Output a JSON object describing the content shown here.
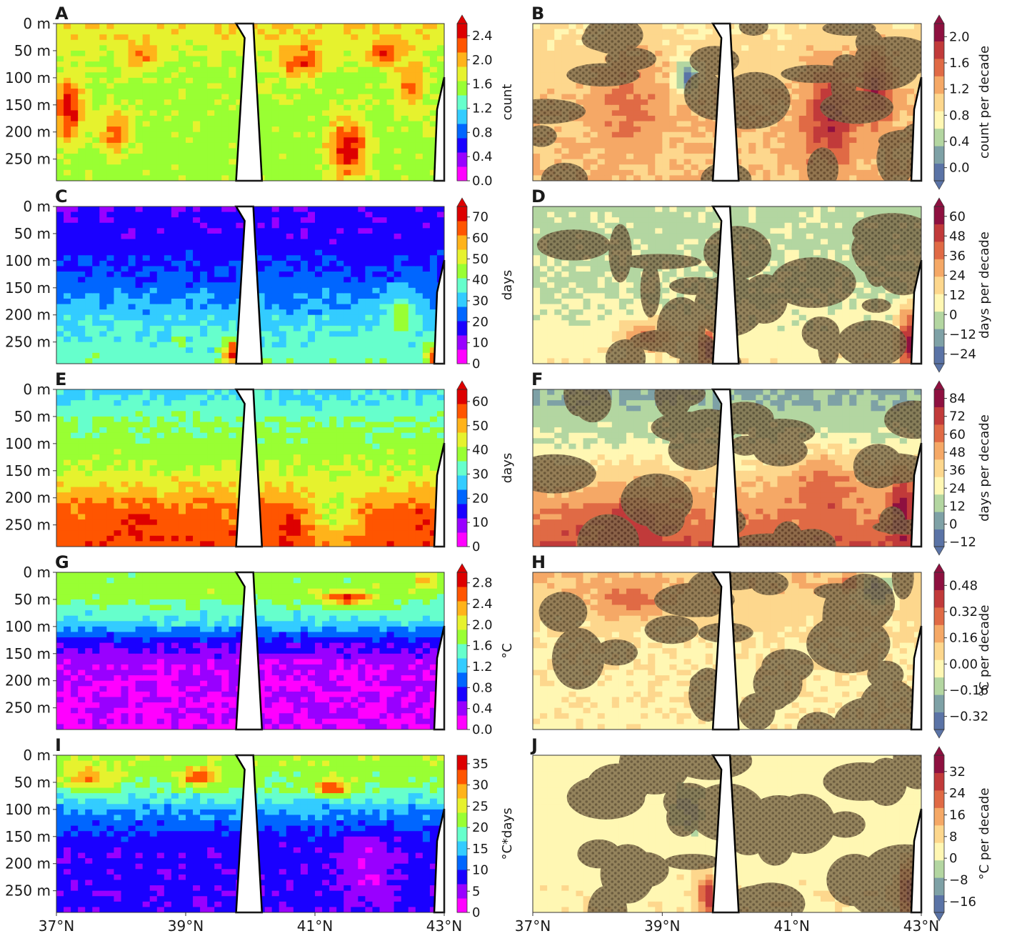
{
  "chart_data": {
    "type": "heatmap",
    "x_ticks": [
      "37°N",
      "39°N",
      "41°N",
      "43°N"
    ],
    "y_ticks": [
      "0 m",
      "50 m",
      "100 m",
      "150 m",
      "200 m",
      "250 m"
    ],
    "xlim": [
      37,
      43
    ],
    "ylim_depth_m": [
      0,
      290
    ],
    "shading": {
      "fill": "#7d6a4a",
      "dot": "#4b3b26"
    },
    "panels": [
      {
        "letter": "A",
        "kind": "jet",
        "colorbar_label": "count",
        "ticks": [
          "0.0",
          "0.4",
          "0.8",
          "1.2",
          "1.6",
          "2.0",
          "2.4"
        ],
        "cb_min": 0.0,
        "cb_max": 2.6,
        "extend": "max",
        "spots": [
          [
            37.2,
            160,
            0.95,
            0.22,
            60
          ],
          [
            37.9,
            200,
            0.85,
            0.25,
            40
          ],
          [
            38.3,
            60,
            0.85,
            0.25,
            25
          ],
          [
            40.8,
            70,
            0.9,
            0.35,
            30
          ],
          [
            41.5,
            230,
            0.95,
            0.3,
            55
          ],
          [
            42.1,
            55,
            0.9,
            0.25,
            25
          ],
          [
            42.5,
            120,
            0.85,
            0.2,
            50
          ]
        ],
        "profile": [
          [
            0,
            0.72
          ],
          [
            80,
            0.62
          ],
          [
            180,
            0.6
          ],
          [
            290,
            0.6
          ]
        ]
      },
      {
        "letter": "B",
        "kind": "trend",
        "colorbar_label": "count per decade",
        "ticks": [
          "0.0",
          "0.4",
          "0.8",
          "1.2",
          "1.6",
          "2.0"
        ],
        "cb_min": -0.2,
        "cb_max": 2.2,
        "extend": "both",
        "spots": [
          [
            38.5,
            150,
            0.7,
            0.5,
            90
          ],
          [
            41.6,
            170,
            0.9,
            0.4,
            90
          ],
          [
            42.3,
            120,
            0.9,
            0.25,
            70
          ],
          [
            39.4,
            100,
            0.1,
            0.2,
            30
          ]
        ],
        "profile": [
          [
            0,
            0.45
          ],
          [
            150,
            0.55
          ],
          [
            290,
            0.55
          ]
        ]
      },
      {
        "letter": "C",
        "kind": "jet",
        "colorbar_label": "days",
        "ticks": [
          "0",
          "10",
          "20",
          "30",
          "40",
          "50",
          "60",
          "70"
        ],
        "cb_min": 0,
        "cb_max": 75,
        "extend": "max",
        "spots": [
          [
            39.7,
            270,
            0.95,
            0.12,
            25
          ],
          [
            42.8,
            275,
            0.9,
            0.1,
            20
          ],
          [
            38.9,
            250,
            0.9,
            0.05,
            10
          ],
          [
            42.3,
            200,
            0.6,
            0.2,
            40
          ]
        ],
        "profile": [
          [
            0,
            0.2
          ],
          [
            80,
            0.23
          ],
          [
            150,
            0.32
          ],
          [
            220,
            0.45
          ],
          [
            290,
            0.52
          ]
        ]
      },
      {
        "letter": "D",
        "kind": "trend",
        "colorbar_label": "days per decade",
        "ticks": [
          "−24",
          "−12",
          "0",
          "12",
          "24",
          "36",
          "48",
          "60"
        ],
        "cb_min": -30,
        "cb_max": 66,
        "extend": "both",
        "spots": [
          [
            39.7,
            260,
            0.95,
            0.15,
            40
          ],
          [
            42.8,
            250,
            0.95,
            0.15,
            60
          ],
          [
            38.8,
            240,
            0.7,
            0.4,
            30
          ]
        ],
        "profile": [
          [
            0,
            0.3
          ],
          [
            150,
            0.32
          ],
          [
            290,
            0.42
          ]
        ]
      },
      {
        "letter": "E",
        "kind": "jet",
        "colorbar_label": "days",
        "ticks": [
          "0",
          "10",
          "20",
          "30",
          "40",
          "50",
          "60"
        ],
        "cb_min": 0,
        "cb_max": 65,
        "extend": "max",
        "spots": [
          [
            38.2,
            255,
            0.95,
            0.3,
            20
          ],
          [
            40.6,
            250,
            0.95,
            0.15,
            25
          ],
          [
            42.7,
            250,
            0.95,
            0.12,
            30
          ],
          [
            41.3,
            220,
            0.62,
            0.35,
            60
          ]
        ],
        "profile": [
          [
            0,
            0.42
          ],
          [
            60,
            0.55
          ],
          [
            140,
            0.62
          ],
          [
            190,
            0.75
          ],
          [
            220,
            0.85
          ],
          [
            290,
            0.88
          ]
        ]
      },
      {
        "letter": "F",
        "kind": "trend",
        "colorbar_label": "days per decade",
        "ticks": [
          "−12",
          "0",
          "12",
          "24",
          "36",
          "48",
          "60",
          "72",
          "84"
        ],
        "cb_min": -15,
        "cb_max": 90,
        "extend": "both",
        "spots": [
          [
            42.7,
            230,
            0.95,
            0.2,
            70
          ],
          [
            41.5,
            200,
            0.75,
            0.5,
            70
          ],
          [
            38.5,
            250,
            0.85,
            0.7,
            45
          ]
        ],
        "profile": [
          [
            0,
            0.2
          ],
          [
            100,
            0.35
          ],
          [
            180,
            0.55
          ],
          [
            290,
            0.78
          ]
        ]
      },
      {
        "letter": "G",
        "kind": "jet",
        "colorbar_label": "°C",
        "ticks": [
          "0.0",
          "0.4",
          "0.8",
          "1.2",
          "1.6",
          "2.0",
          "2.4",
          "2.8"
        ],
        "cb_min": 0,
        "cb_max": 3.0,
        "extend": "max",
        "spots": [
          [
            41.5,
            48,
            0.95,
            0.35,
            12
          ],
          [
            42.7,
            15,
            0.8,
            0.15,
            15
          ]
        ],
        "profile": [
          [
            0,
            0.58
          ],
          [
            40,
            0.6
          ],
          [
            90,
            0.45
          ],
          [
            130,
            0.22
          ],
          [
            170,
            0.1
          ],
          [
            290,
            0.08
          ]
        ]
      },
      {
        "letter": "H",
        "kind": "trend",
        "colorbar_label": "°C per decade",
        "ticks": [
          "−0.32",
          "−0.16",
          "0.00",
          "0.16",
          "0.32",
          "0.48"
        ],
        "cb_min": -0.4,
        "cb_max": 0.56,
        "extend": "both",
        "spots": [
          [
            42.3,
            30,
            0.1,
            0.3,
            30
          ],
          [
            38.5,
            50,
            0.75,
            0.5,
            30
          ],
          [
            41.9,
            20,
            0.75,
            0.2,
            15
          ]
        ],
        "profile": [
          [
            0,
            0.55
          ],
          [
            150,
            0.43
          ],
          [
            290,
            0.42
          ]
        ]
      },
      {
        "letter": "I",
        "kind": "jet",
        "colorbar_label": "°C*days",
        "ticks": [
          "0",
          "5",
          "10",
          "15",
          "20",
          "25",
          "30",
          "35"
        ],
        "cb_min": 0,
        "cb_max": 37,
        "extend": "none",
        "spots": [
          [
            39.2,
            40,
            0.95,
            0.3,
            15
          ],
          [
            41.3,
            60,
            0.9,
            0.3,
            15
          ],
          [
            41.8,
            210,
            0.08,
            0.4,
            60
          ],
          [
            37.5,
            40,
            0.8,
            0.4,
            20
          ]
        ],
        "profile": [
          [
            0,
            0.62
          ],
          [
            60,
            0.55
          ],
          [
            100,
            0.38
          ],
          [
            160,
            0.22
          ],
          [
            290,
            0.2
          ]
        ]
      },
      {
        "letter": "J",
        "kind": "trend",
        "colorbar_label": "°C per decade",
        "ticks": [
          "−16",
          "−8",
          "0",
          "8",
          "16",
          "24",
          "32"
        ],
        "cb_min": -20,
        "cb_max": 38,
        "extend": "both",
        "spots": [
          [
            42.8,
            250,
            0.95,
            0.15,
            50
          ],
          [
            39.7,
            260,
            0.85,
            0.15,
            40
          ],
          [
            39.4,
            100,
            0.15,
            0.2,
            40
          ]
        ],
        "profile": [
          [
            0,
            0.4
          ],
          [
            150,
            0.38
          ],
          [
            290,
            0.42
          ]
        ]
      }
    ]
  }
}
